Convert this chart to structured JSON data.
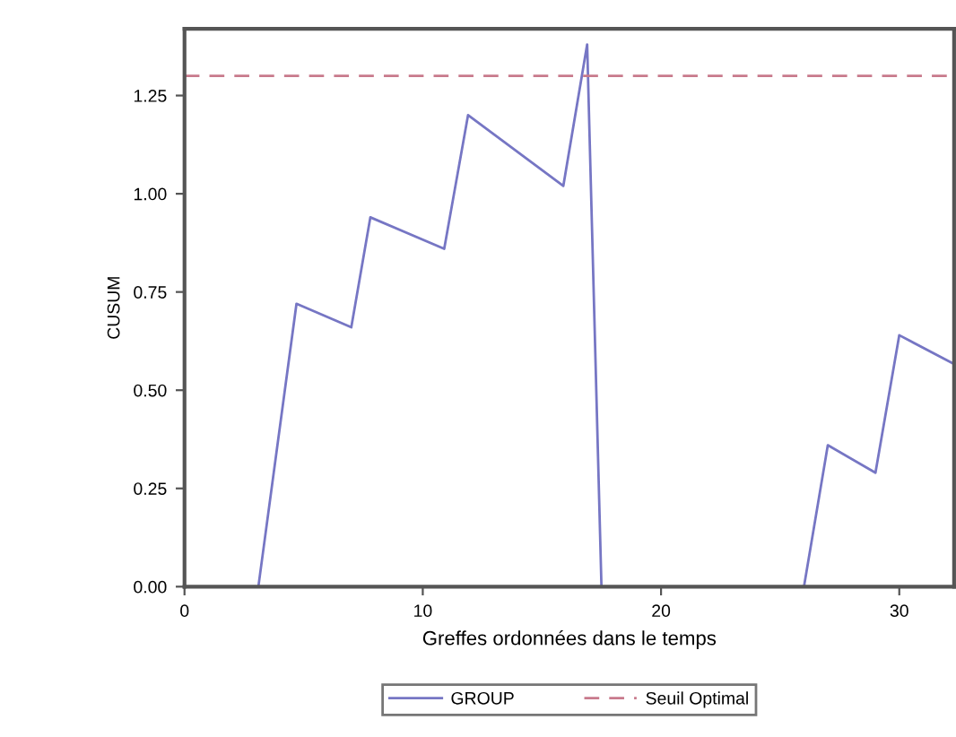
{
  "chart_data": {
    "type": "line",
    "xlabel": "Greffes ordonnées dans le temps",
    "ylabel": "CUSUM",
    "series": [
      {
        "name": "GROUP",
        "color": "#7676c4",
        "x": [
          0,
          3.1,
          4.7,
          7.0,
          7.8,
          10.9,
          11.9,
          15.9,
          16.9,
          17.5,
          26.0,
          27.0,
          29.0,
          30.0,
          32.2
        ],
        "values": [
          0,
          0,
          0.72,
          0.66,
          0.94,
          0.86,
          1.2,
          1.02,
          1.38,
          0,
          0,
          0.36,
          0.29,
          0.64,
          0.57
        ]
      }
    ],
    "ref_lines": [
      {
        "axis": "y",
        "value": 1.3,
        "label": "Seuil Optimal",
        "color": "#c87a8c",
        "line_style": "dashed"
      }
    ],
    "xlim": [
      0,
      32.3
    ],
    "ylim": [
      0,
      1.42
    ],
    "xticks": [
      0,
      10,
      20,
      30
    ],
    "yticks": [
      {
        "value": 0,
        "label": "0.00"
      },
      {
        "value": 0.25,
        "label": "0.25"
      },
      {
        "value": 0.5,
        "label": "0.50"
      },
      {
        "value": 0.75,
        "label": "0.75"
      },
      {
        "value": 1.0,
        "label": "1.00"
      },
      {
        "value": 1.25,
        "label": "1.25"
      }
    ],
    "grid": false,
    "legend": "bottom",
    "marker": "none",
    "line_style": "solid"
  }
}
